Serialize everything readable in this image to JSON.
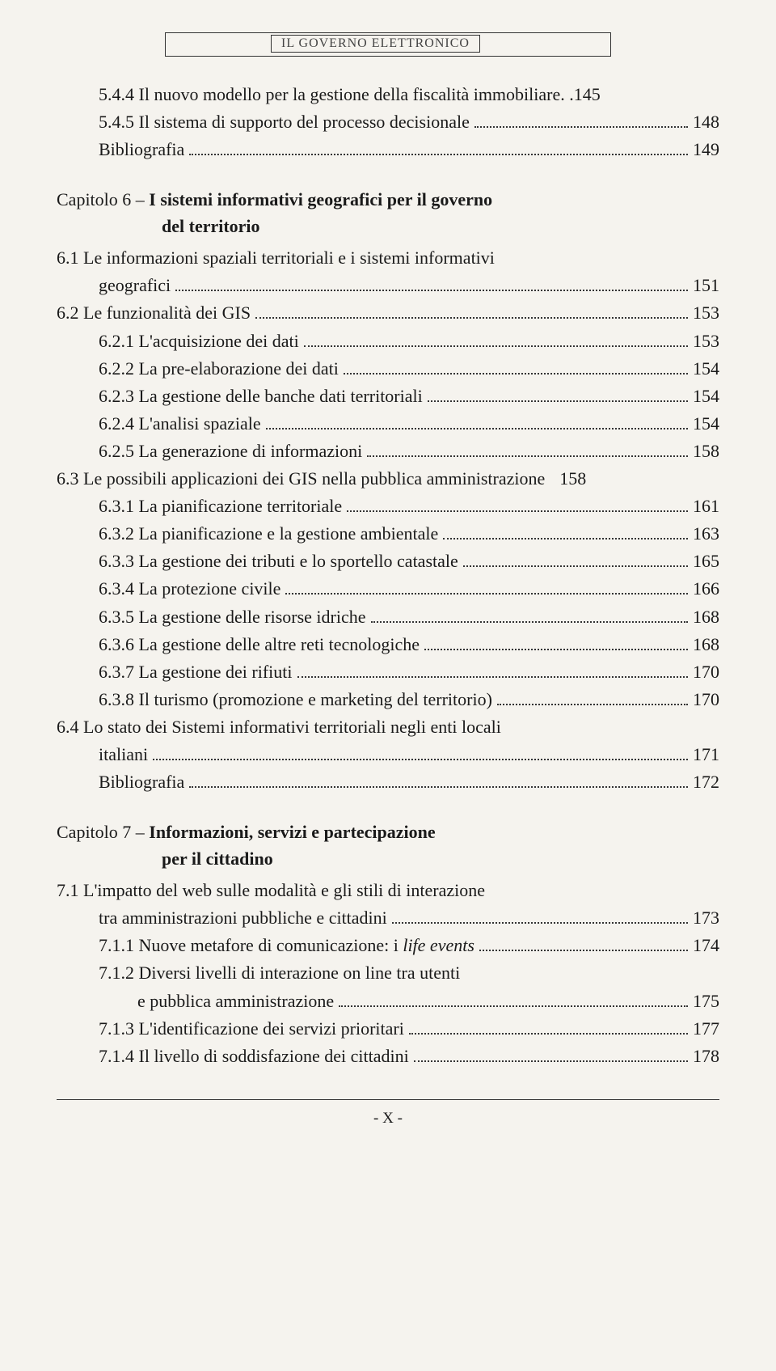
{
  "header": {
    "text": "IL GOVERNO ELETTRONICO"
  },
  "entries": [
    {
      "type": "line",
      "indent": 1,
      "label": "5.4.4 Il nuovo modello per la gestione della fiscalità immobiliare",
      "short_dots": true,
      "page": "145"
    },
    {
      "type": "line",
      "indent": 1,
      "label": "5.4.5 Il sistema di supporto del processo decisionale",
      "page": "148"
    },
    {
      "type": "line",
      "indent": 1,
      "label": "Bibliografia",
      "page": "149"
    },
    {
      "type": "chapter",
      "title_prefix": "Capitolo 6 – ",
      "title_bold": "I sistemi informativi geografici per il governo",
      "sub_bold": "del territorio"
    },
    {
      "type": "cont",
      "indent": 0,
      "label": "6.1 Le informazioni spaziali territoriali e i sistemi informativi"
    },
    {
      "type": "line",
      "indent": 1,
      "label": "geografici",
      "page": "151"
    },
    {
      "type": "line",
      "indent": 0,
      "label": "6.2 Le funzionalità dei GIS",
      "page": "153"
    },
    {
      "type": "line",
      "indent": 1,
      "label": "6.2.1 L'acquisizione dei dati",
      "page": "153"
    },
    {
      "type": "line",
      "indent": 1,
      "label": "6.2.2 La pre-elaborazione dei dati",
      "page": "154"
    },
    {
      "type": "line",
      "indent": 1,
      "label": "6.2.3 La gestione delle banche dati territoriali",
      "page": "154"
    },
    {
      "type": "line",
      "indent": 1,
      "label": "6.2.4 L'analisi spaziale",
      "page": "154"
    },
    {
      "type": "line",
      "indent": 1,
      "label": "6.2.5 La generazione di informazioni",
      "page": "158"
    },
    {
      "type": "line",
      "indent": 0,
      "label": "6.3 Le possibili applicazioni dei GIS nella pubblica amministrazione",
      "no_dots": true,
      "page": "158"
    },
    {
      "type": "line",
      "indent": 1,
      "label": "6.3.1 La pianificazione territoriale",
      "page": "161"
    },
    {
      "type": "line",
      "indent": 1,
      "label": "6.3.2 La pianificazione e la gestione ambientale",
      "page": "163"
    },
    {
      "type": "line",
      "indent": 1,
      "label": "6.3.3 La gestione dei tributi e lo sportello catastale",
      "page": "165"
    },
    {
      "type": "line",
      "indent": 1,
      "label": "6.3.4 La protezione civile",
      "page": "166"
    },
    {
      "type": "line",
      "indent": 1,
      "label": "6.3.5 La gestione delle risorse idriche",
      "page": "168"
    },
    {
      "type": "line",
      "indent": 1,
      "label": "6.3.6 La gestione delle altre reti tecnologiche",
      "page": "168"
    },
    {
      "type": "line",
      "indent": 1,
      "label": "6.3.7 La gestione dei rifiuti",
      "page": "170"
    },
    {
      "type": "line",
      "indent": 1,
      "label": "6.3.8 Il turismo (promozione e marketing del territorio)",
      "page": "170"
    },
    {
      "type": "cont",
      "indent": 0,
      "label": "6.4 Lo stato dei Sistemi informativi territoriali negli enti locali"
    },
    {
      "type": "line",
      "indent": 1,
      "label": "italiani",
      "page": "171"
    },
    {
      "type": "line",
      "indent": 1,
      "label": "Bibliografia",
      "page": "172"
    },
    {
      "type": "chapter",
      "title_prefix": "Capitolo 7 – ",
      "title_bold": "Informazioni, servizi e partecipazione",
      "sub_bold": "per il cittadino"
    },
    {
      "type": "cont",
      "indent": 0,
      "label": "7.1 L'impatto del web sulle modalità e gli stili di interazione"
    },
    {
      "type": "line",
      "indent": 1,
      "label": "tra amministrazioni pubbliche e cittadini",
      "page": "173"
    },
    {
      "type": "line",
      "indent": 1,
      "label_parts": [
        {
          "text": "7.1.1 Nuove metafore di comunicazione: i "
        },
        {
          "text": "life events",
          "italic": true
        }
      ],
      "page": "174"
    },
    {
      "type": "cont",
      "indent": 1,
      "label": "7.1.2 Diversi livelli di interazione on line tra utenti"
    },
    {
      "type": "line",
      "indent": 2,
      "label": "e pubblica amministrazione",
      "page": "175"
    },
    {
      "type": "line",
      "indent": 1,
      "label": "7.1.3 L'identificazione dei servizi prioritari",
      "page": "177"
    },
    {
      "type": "line",
      "indent": 1,
      "label": "7.1.4 Il livello di soddisfazione dei cittadini",
      "page": "178"
    }
  ],
  "footer": {
    "text": "- X -"
  }
}
